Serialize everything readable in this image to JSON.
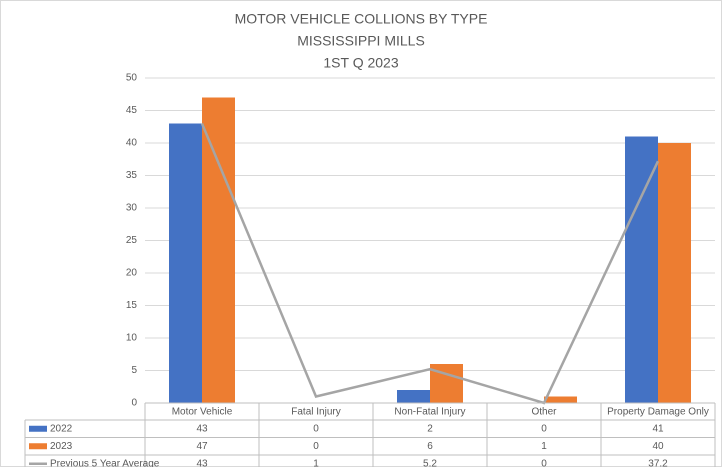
{
  "chart_data": {
    "type": "bar",
    "title": [
      "MOTOR VEHICLE COLLIONS BY TYPE",
      "MISSISSIPPI  MILLS",
      "1ST Q 2023"
    ],
    "categories": [
      "Motor Vehicle",
      "Fatal Injury",
      "Non-Fatal Injury",
      "Other",
      "Property Damage Only"
    ],
    "series": [
      {
        "name": "2022",
        "color": "#4472c4",
        "type": "bar",
        "values": [
          43,
          0,
          2,
          0,
          41
        ]
      },
      {
        "name": "2023",
        "color": "#ed7d31",
        "type": "bar",
        "values": [
          47,
          0,
          6,
          1,
          40
        ]
      },
      {
        "name": "Previous 5 Year Average",
        "color": "#a5a5a5",
        "type": "line",
        "values": [
          43,
          1,
          5.2,
          0,
          37.2
        ]
      }
    ],
    "ylim": [
      0,
      50
    ],
    "yticks": [
      0,
      5,
      10,
      15,
      20,
      25,
      30,
      35,
      40,
      45,
      50
    ],
    "grid": true,
    "legend": "data-table"
  }
}
